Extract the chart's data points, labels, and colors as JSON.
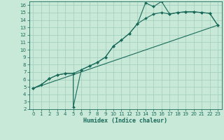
{
  "xlabel": "Humidex (Indice chaleur)",
  "background_color": "#c8e8d8",
  "grid_color": "#a0ccbb",
  "line_color": "#1a6b5a",
  "xlim": [
    -0.5,
    23.5
  ],
  "ylim": [
    2,
    16.5
  ],
  "xticks": [
    0,
    1,
    2,
    3,
    4,
    5,
    6,
    7,
    8,
    9,
    10,
    11,
    12,
    13,
    14,
    15,
    16,
    17,
    18,
    19,
    20,
    21,
    22,
    23
  ],
  "yticks": [
    2,
    3,
    4,
    5,
    6,
    7,
    8,
    9,
    10,
    11,
    12,
    13,
    14,
    15,
    16
  ],
  "line1_x": [
    0,
    1,
    2,
    3,
    4,
    5,
    5,
    6,
    7,
    8,
    9,
    10,
    11,
    12,
    13,
    14,
    15,
    16,
    17,
    18,
    19,
    20,
    21,
    22,
    23
  ],
  "line1_y": [
    4.8,
    5.3,
    6.1,
    6.6,
    6.8,
    6.8,
    2.3,
    7.3,
    7.8,
    8.3,
    9.0,
    10.5,
    11.3,
    12.2,
    13.5,
    16.3,
    15.8,
    16.5,
    14.8,
    15.0,
    15.1,
    15.1,
    15.0,
    14.9,
    13.3
  ],
  "line2_x": [
    0,
    1,
    2,
    3,
    4,
    5,
    6,
    7,
    8,
    9,
    10,
    11,
    12,
    13,
    14,
    15,
    16,
    17,
    18,
    19,
    20,
    21,
    22,
    23
  ],
  "line2_y": [
    4.8,
    5.3,
    6.1,
    6.6,
    6.8,
    6.8,
    7.3,
    7.8,
    8.3,
    9.0,
    10.5,
    11.3,
    12.2,
    13.5,
    14.2,
    14.8,
    15.0,
    14.8,
    15.0,
    15.1,
    15.1,
    15.0,
    14.9,
    13.3
  ],
  "line3_x": [
    0,
    23
  ],
  "line3_y": [
    4.8,
    13.3
  ],
  "tick_fontsize": 5,
  "xlabel_fontsize": 6
}
